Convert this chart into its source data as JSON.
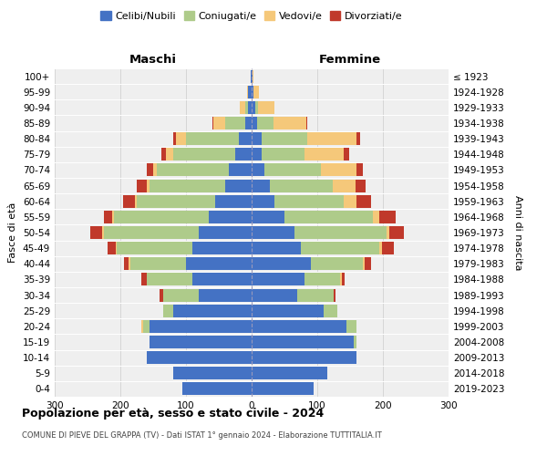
{
  "age_groups": [
    "0-4",
    "5-9",
    "10-14",
    "15-19",
    "20-24",
    "25-29",
    "30-34",
    "35-39",
    "40-44",
    "45-49",
    "50-54",
    "55-59",
    "60-64",
    "65-69",
    "70-74",
    "75-79",
    "80-84",
    "85-89",
    "90-94",
    "95-99",
    "100+"
  ],
  "birth_years": [
    "2019-2023",
    "2014-2018",
    "2009-2013",
    "2004-2008",
    "1999-2003",
    "1994-1998",
    "1989-1993",
    "1984-1988",
    "1979-1983",
    "1974-1978",
    "1969-1973",
    "1964-1968",
    "1959-1963",
    "1954-1958",
    "1949-1953",
    "1944-1948",
    "1939-1943",
    "1934-1938",
    "1929-1933",
    "1924-1928",
    "≤ 1923"
  ],
  "males": {
    "celibi": [
      105,
      120,
      160,
      155,
      155,
      120,
      80,
      90,
      100,
      90,
      80,
      65,
      55,
      40,
      35,
      25,
      20,
      10,
      5,
      5,
      2
    ],
    "coniugati": [
      0,
      0,
      0,
      0,
      10,
      15,
      55,
      70,
      85,
      115,
      145,
      145,
      120,
      115,
      110,
      95,
      80,
      30,
      5,
      0,
      0
    ],
    "vedovi": [
      0,
      0,
      0,
      0,
      3,
      0,
      0,
      0,
      2,
      2,
      3,
      3,
      3,
      5,
      5,
      10,
      15,
      18,
      8,
      2,
      0
    ],
    "divorziati": [
      0,
      0,
      0,
      0,
      0,
      0,
      5,
      8,
      8,
      12,
      18,
      12,
      18,
      15,
      10,
      8,
      5,
      2,
      0,
      0,
      0
    ]
  },
  "females": {
    "nubili": [
      95,
      115,
      160,
      155,
      145,
      110,
      70,
      80,
      90,
      75,
      65,
      50,
      35,
      28,
      20,
      15,
      15,
      8,
      5,
      3,
      2
    ],
    "coniugate": [
      0,
      0,
      0,
      5,
      15,
      20,
      55,
      55,
      80,
      120,
      140,
      135,
      105,
      95,
      85,
      65,
      70,
      25,
      5,
      0,
      0
    ],
    "vedove": [
      0,
      0,
      0,
      0,
      0,
      0,
      0,
      2,
      2,
      3,
      5,
      10,
      20,
      35,
      55,
      60,
      75,
      50,
      25,
      8,
      1
    ],
    "divorziate": [
      0,
      0,
      0,
      0,
      0,
      0,
      3,
      5,
      10,
      18,
      22,
      25,
      22,
      15,
      10,
      8,
      5,
      2,
      0,
      0,
      0
    ]
  },
  "colors": {
    "celibi_nubili": "#4472C4",
    "coniugati": "#AECB8A",
    "vedovi": "#F5C87A",
    "divorziati": "#C0392B"
  },
  "title": "Popolazione per età, sesso e stato civile - 2024",
  "subtitle": "COMUNE DI PIEVE DEL GRAPPA (TV) - Dati ISTAT 1° gennaio 2024 - Elaborazione TUTTITALIA.IT",
  "xlabel_left": "Maschi",
  "xlabel_right": "Femmine",
  "ylabel_left": "Fasce di età",
  "ylabel_right": "Anni di nascita",
  "xlim": 300,
  "legend_labels": [
    "Celibi/Nubili",
    "Coniugati/e",
    "Vedovi/e",
    "Divorziati/e"
  ],
  "bg_color": "#efefef"
}
